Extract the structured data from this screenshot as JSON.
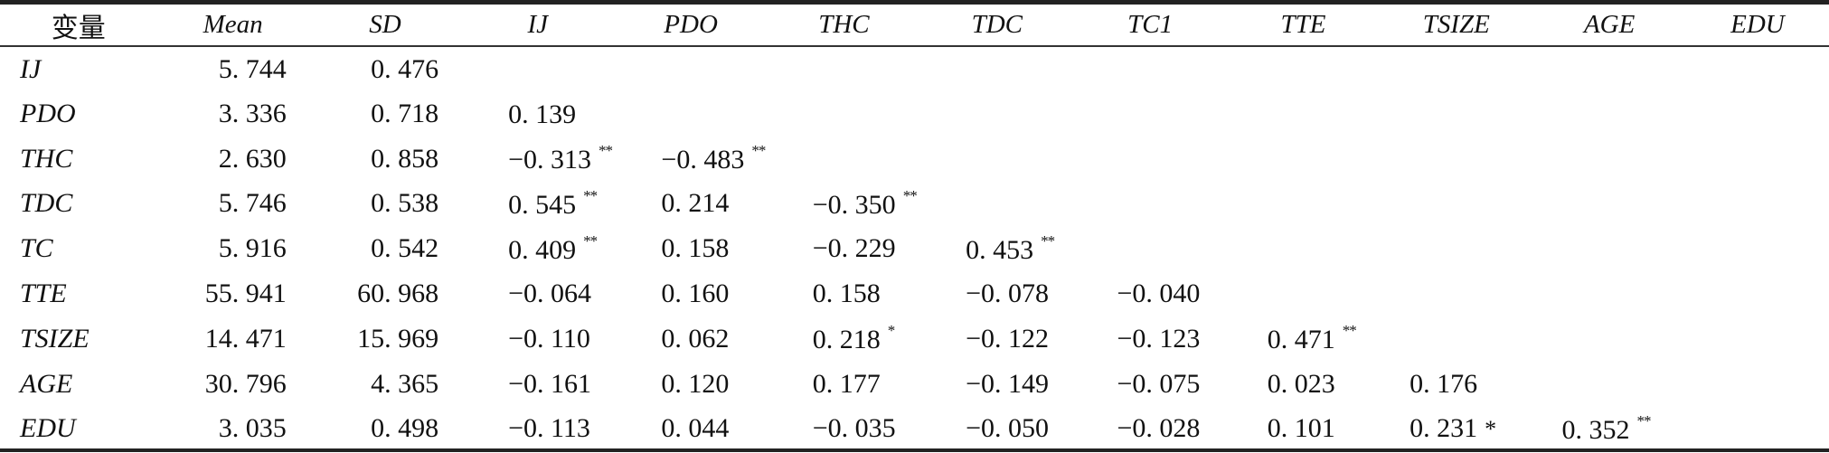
{
  "table": {
    "columns": [
      "变量",
      "Mean",
      "SD",
      "IJ",
      "PDO",
      "THC",
      "TDC",
      "TC1",
      "TTE",
      "TSIZE",
      "AGE",
      "EDU"
    ],
    "rows": [
      {
        "name": "IJ",
        "mean": "5. 744",
        "sd": "0. 476",
        "ij": "",
        "ij_sig": "",
        "pdo": "",
        "pdo_sig": "",
        "thc": "",
        "thc_sig": "",
        "tdc": "",
        "tdc_sig": "",
        "tc": "",
        "tte": "",
        "tte_sig": "",
        "tsize": "",
        "tsize_sig": "",
        "age": "",
        "age_sig": ""
      },
      {
        "name": "PDO",
        "mean": "3. 336",
        "sd": "0. 718",
        "ij": "0. 139",
        "ij_sig": "",
        "pdo": "",
        "pdo_sig": "",
        "thc": "",
        "thc_sig": "",
        "tdc": "",
        "tdc_sig": "",
        "tc": "",
        "tte": "",
        "tte_sig": "",
        "tsize": "",
        "tsize_sig": "",
        "age": "",
        "age_sig": ""
      },
      {
        "name": "THC",
        "mean": "2. 630",
        "sd": "0. 858",
        "ij": "−0. 313",
        "ij_sig": "**",
        "pdo": "−0. 483",
        "pdo_sig": "**",
        "thc": "",
        "thc_sig": "",
        "tdc": "",
        "tdc_sig": "",
        "tc": "",
        "tte": "",
        "tte_sig": "",
        "tsize": "",
        "tsize_sig": "",
        "age": "",
        "age_sig": ""
      },
      {
        "name": "TDC",
        "mean": "5. 746",
        "sd": "0. 538",
        "ij": "0. 545",
        "ij_sig": "**",
        "pdo": "0. 214",
        "pdo_sig": "",
        "thc": "−0. 350",
        "thc_sig": "**",
        "tdc": "",
        "tdc_sig": "",
        "tc": "",
        "tte": "",
        "tte_sig": "",
        "tsize": "",
        "tsize_sig": "",
        "age": "",
        "age_sig": ""
      },
      {
        "name": "TC",
        "mean": "5. 916",
        "sd": "0. 542",
        "ij": "0. 409",
        "ij_sig": "**",
        "pdo": "0. 158",
        "pdo_sig": "",
        "thc": "−0. 229",
        "thc_sig": "",
        "tdc": "0. 453",
        "tdc_sig": "**",
        "tc": "",
        "tte": "",
        "tte_sig": "",
        "tsize": "",
        "tsize_sig": "",
        "age": "",
        "age_sig": ""
      },
      {
        "name": "TTE",
        "mean": "55. 941",
        "sd": "60. 968",
        "ij": "−0. 064",
        "ij_sig": "",
        "pdo": "0. 160",
        "pdo_sig": "",
        "thc": "0. 158",
        "thc_sig": "",
        "tdc": "−0. 078",
        "tdc_sig": "",
        "tc": "−0. 040",
        "tte": "",
        "tte_sig": "",
        "tsize": "",
        "tsize_sig": "",
        "age": "",
        "age_sig": ""
      },
      {
        "name": "TSIZE",
        "mean": "14. 471",
        "sd": "15. 969",
        "ij": "−0. 110",
        "ij_sig": "",
        "pdo": "0. 062",
        "pdo_sig": "",
        "thc": "0. 218",
        "thc_sig": "*",
        "tdc": "−0. 122",
        "tdc_sig": "",
        "tc": "−0. 123",
        "tte": "0. 471",
        "tte_sig": "**",
        "tsize": "",
        "tsize_sig": "",
        "age": "",
        "age_sig": ""
      },
      {
        "name": "AGE",
        "mean": "30. 796",
        "sd": "4. 365",
        "ij": "−0. 161",
        "ij_sig": "",
        "pdo": "0. 120",
        "pdo_sig": "",
        "thc": "0. 177",
        "thc_sig": "",
        "tdc": "−0. 149",
        "tdc_sig": "",
        "tc": "−0. 075",
        "tte": "0. 023",
        "tte_sig": "",
        "tsize": "0. 176",
        "tsize_sig": "",
        "age": "",
        "age_sig": ""
      },
      {
        "name": "EDU",
        "mean": "3. 035",
        "sd": "0. 498",
        "ij": "−0. 113",
        "ij_sig": "",
        "pdo": "0. 044",
        "pdo_sig": "",
        "thc": "−0. 035",
        "thc_sig": "",
        "tdc": "−0. 050",
        "tdc_sig": "",
        "tc": "−0. 028",
        "tte": "0. 101",
        "tte_sig": "",
        "tsize": "0. 231",
        "tsize_sig": "*",
        "age": "0. 352",
        "age_sig": "**"
      }
    ]
  }
}
